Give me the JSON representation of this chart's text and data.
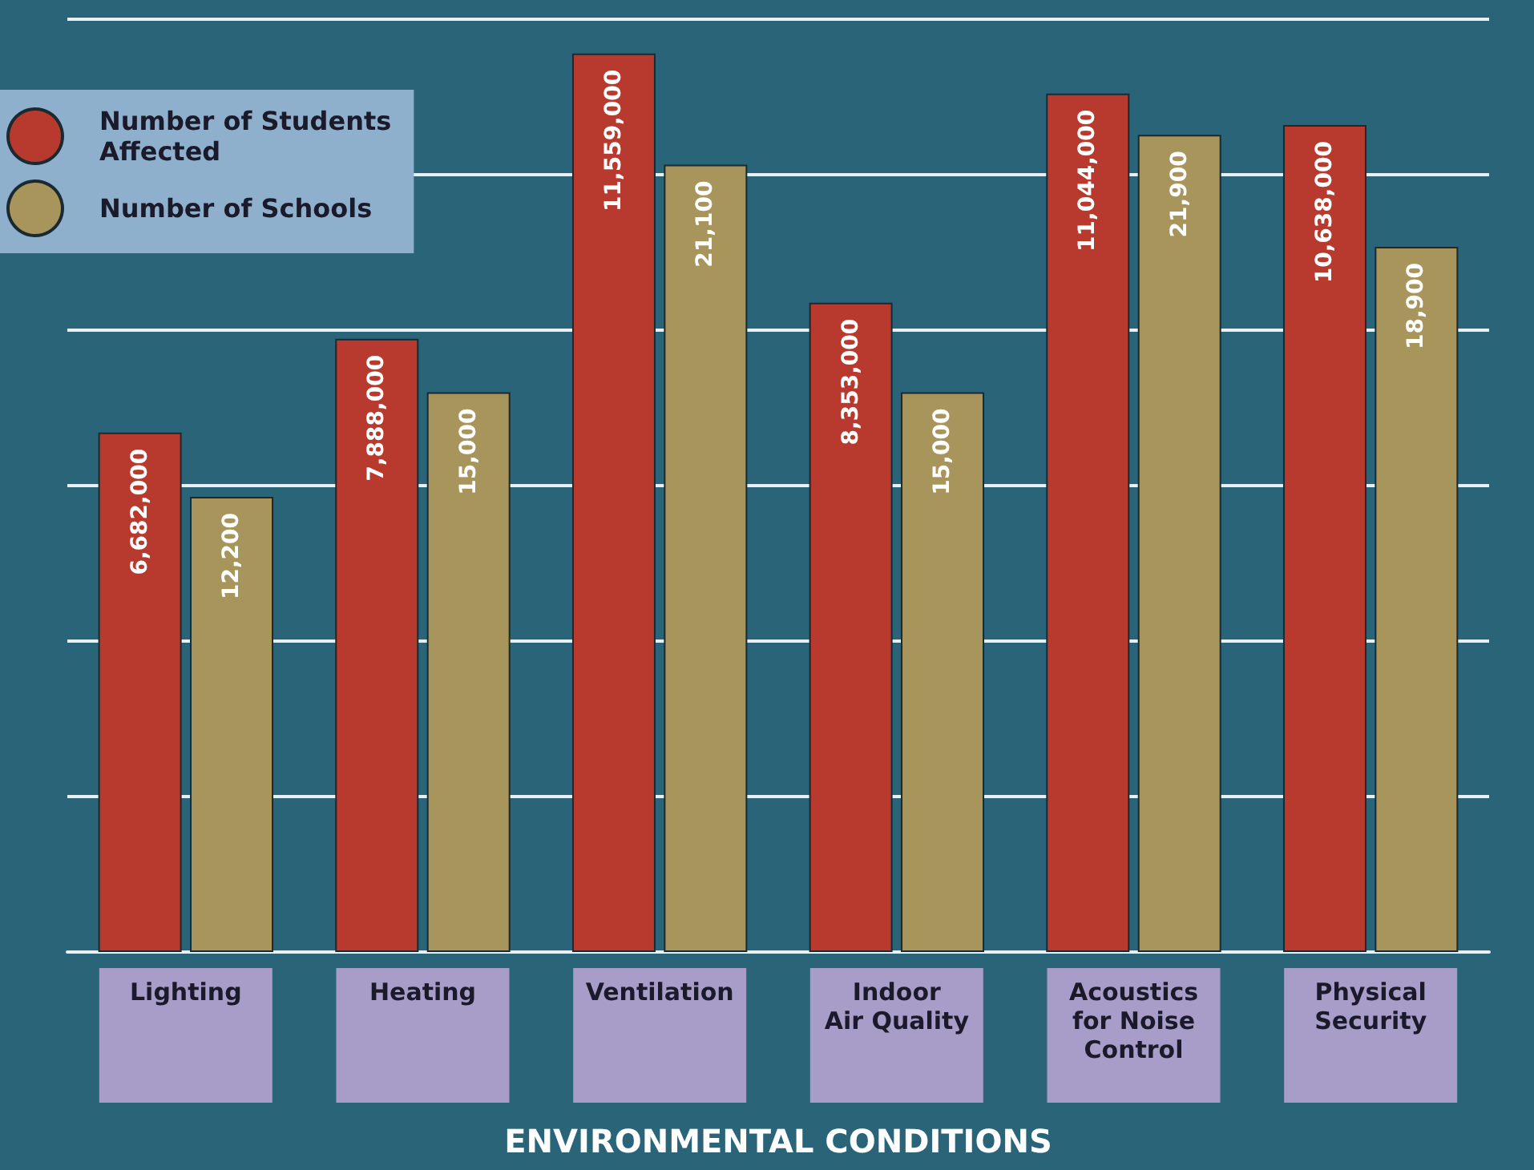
{
  "chart_data": {
    "type": "bar",
    "xlabel": "ENVIRONMENTAL CONDITIONS",
    "categories": [
      "Lighting",
      "Heating",
      "Ventilation",
      "Indoor\nAir Quality",
      "Acoustics\nfor Noise\nControl",
      "Physical\nSecurity"
    ],
    "series": [
      {
        "name": "Number of Students\nAffected",
        "color": "#b83a2e",
        "values": [
          6682000,
          7888000,
          11559000,
          8353000,
          11044000,
          10638000
        ],
        "value_labels": [
          "6,682,000",
          "7,888,000",
          "11,559,000",
          "8,353,000",
          "11,044,000",
          "10,638,000"
        ]
      },
      {
        "name": "Number of Schools",
        "color": "#a8955c",
        "axis": "y2",
        "values": [
          12200,
          15000,
          21100,
          15000,
          21900,
          18900
        ],
        "value_labels": [
          "12,200",
          "15,000",
          "21,100",
          "15,000",
          "21,900",
          "18,900"
        ]
      }
    ],
    "tick_labels": "x",
    "grid": "y",
    "legend": "top left"
  }
}
